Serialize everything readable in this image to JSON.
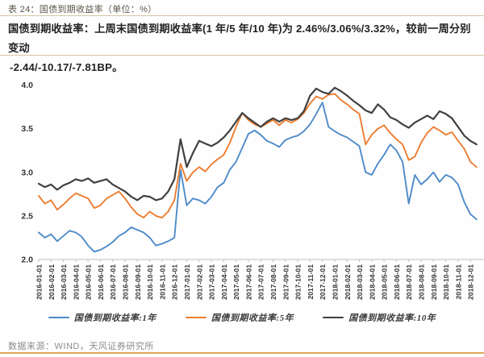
{
  "header": {
    "table_label": "表 24：国债到期收益率（单位：%）"
  },
  "summary": {
    "line1": "国债到期收益率：上周末国债到期收益率(1 年/5 年/10 年)为 2.46%/3.06%/3.32%，较前一周分别变动",
    "line2": "-2.44/-10.17/-7.81BP。"
  },
  "footer": {
    "source": "数据来源：WIND，天风证券研究所"
  },
  "colors": {
    "line_1y": "#4e8bc8",
    "line_5y": "#ed7d31",
    "line_10y": "#404040",
    "axis": "#bfbfbf",
    "axis_text": "#333333",
    "divider": "#d5c6a1",
    "bottom_rule": "#dfa65a"
  },
  "chart_data": {
    "type": "line",
    "title": "",
    "xlabel": "",
    "ylabel": "%",
    "grid": false,
    "legend_position": "bottom",
    "ylim": [
      2.0,
      4.07
    ],
    "yticks": [
      "2.0",
      "2.5",
      "3.0",
      "3.5",
      "4.0"
    ],
    "x_start": "2016-01-01",
    "x_step_months": 0.5,
    "x_tick_labels": [
      "2016-01-01",
      "2016-02-01",
      "2016-03-01",
      "2016-04-01",
      "2016-05-01",
      "2016-06-01",
      "2016-07-01",
      "2016-08-01",
      "2016-09-01",
      "2016-10-01",
      "2016-11-01",
      "2016-12-01",
      "2017-01-01",
      "2017-02-01",
      "2017-03-01",
      "2017-04-01",
      "2017-05-01",
      "2017-06-01",
      "2017-07-01",
      "2017-08-01",
      "2017-09-01",
      "2017-10-01",
      "2017-11-01",
      "2017-12-01",
      "2018-01-01",
      "2018-02-01",
      "2018-03-01",
      "2018-04-01",
      "2018-05-01",
      "2018-06-01",
      "2018-07-01",
      "2018-08-01",
      "2018-09-01",
      "2018-10-01",
      "2018-11-01",
      "2018-12-01"
    ],
    "series": [
      {
        "name": "国债到期收益率:1年",
        "color": "#4e8bc8",
        "last_value": 2.46,
        "values": [
          2.31,
          2.25,
          2.29,
          2.21,
          2.27,
          2.33,
          2.31,
          2.26,
          2.16,
          2.09,
          2.11,
          2.15,
          2.2,
          2.27,
          2.31,
          2.37,
          2.34,
          2.31,
          2.25,
          2.16,
          2.18,
          2.21,
          2.25,
          3.03,
          2.62,
          2.7,
          2.68,
          2.64,
          2.72,
          2.83,
          2.88,
          3.03,
          3.12,
          3.28,
          3.44,
          3.48,
          3.43,
          3.36,
          3.33,
          3.29,
          3.37,
          3.4,
          3.42,
          3.47,
          3.55,
          3.67,
          3.8,
          3.52,
          3.47,
          3.43,
          3.4,
          3.35,
          3.3,
          3.0,
          2.97,
          3.1,
          3.2,
          3.32,
          3.25,
          3.12,
          2.64,
          2.97,
          2.86,
          2.92,
          3.0,
          2.89,
          2.97,
          2.94,
          2.86,
          2.66,
          2.52,
          2.46
        ]
      },
      {
        "name": "国债到期收益率:5年",
        "color": "#ed7d31",
        "last_value": 3.06,
        "values": [
          2.73,
          2.64,
          2.68,
          2.57,
          2.63,
          2.7,
          2.76,
          2.73,
          2.7,
          2.59,
          2.62,
          2.7,
          2.74,
          2.78,
          2.7,
          2.6,
          2.52,
          2.48,
          2.55,
          2.5,
          2.48,
          2.55,
          2.68,
          3.1,
          2.9,
          3.0,
          3.06,
          3.01,
          3.09,
          3.15,
          3.2,
          3.34,
          3.52,
          3.68,
          3.6,
          3.55,
          3.52,
          3.56,
          3.6,
          3.54,
          3.6,
          3.57,
          3.61,
          3.68,
          3.79,
          3.87,
          3.84,
          3.89,
          3.9,
          3.83,
          3.78,
          3.72,
          3.67,
          3.32,
          3.43,
          3.5,
          3.54,
          3.45,
          3.38,
          3.32,
          3.14,
          3.18,
          3.34,
          3.45,
          3.52,
          3.48,
          3.43,
          3.46,
          3.36,
          3.27,
          3.12,
          3.06
        ]
      },
      {
        "name": "国债到期收益率:10年",
        "color": "#404040",
        "last_value": 3.32,
        "values": [
          2.87,
          2.83,
          2.86,
          2.8,
          2.85,
          2.88,
          2.92,
          2.9,
          2.93,
          2.88,
          2.9,
          2.92,
          2.86,
          2.82,
          2.78,
          2.72,
          2.68,
          2.73,
          2.72,
          2.68,
          2.7,
          2.78,
          2.92,
          3.38,
          3.06,
          3.22,
          3.36,
          3.33,
          3.3,
          3.34,
          3.4,
          3.48,
          3.58,
          3.68,
          3.62,
          3.57,
          3.52,
          3.58,
          3.62,
          3.58,
          3.62,
          3.6,
          3.62,
          3.7,
          3.88,
          3.96,
          3.92,
          3.9,
          3.97,
          3.93,
          3.88,
          3.82,
          3.77,
          3.71,
          3.68,
          3.78,
          3.72,
          3.63,
          3.6,
          3.55,
          3.51,
          3.57,
          3.61,
          3.65,
          3.61,
          3.7,
          3.67,
          3.62,
          3.52,
          3.42,
          3.36,
          3.32
        ]
      }
    ]
  }
}
